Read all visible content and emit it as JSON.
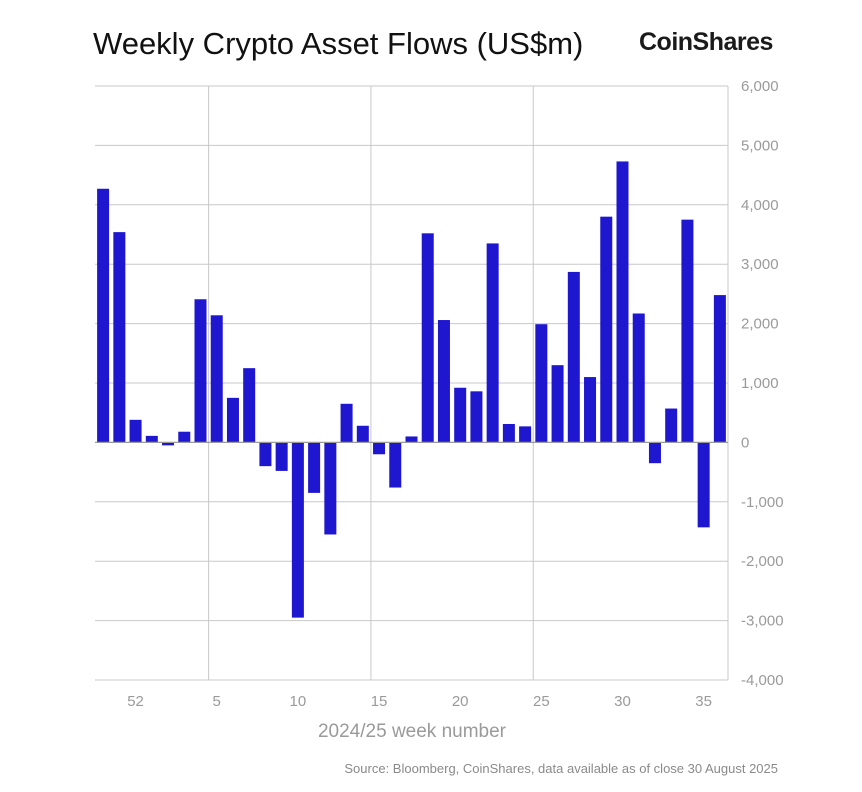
{
  "header": {
    "title": "Weekly Crypto Asset Flows (US$m)",
    "logo_text": "CoinShares"
  },
  "footer": {
    "source": "Source: Bloomberg, CoinShares, data available as of close 30 August 2025"
  },
  "colors": {
    "bar": "#1f17cf",
    "grid": "#c8c8c8",
    "tick_text": "#9a9a9a"
  },
  "chart_data": {
    "type": "bar",
    "title": "Weekly Crypto Asset Flows (US$m)",
    "xlabel": "2024/25 week number",
    "ylabel": "",
    "ylim": [
      -4000,
      6000
    ],
    "yticks": [
      -4000,
      -3000,
      -2000,
      -1000,
      0,
      1000,
      2000,
      3000,
      4000,
      5000,
      6000
    ],
    "ytick_labels": [
      "-4,000",
      "-3,000",
      "-2,000",
      "-1,000",
      "0",
      "1,000",
      "2,000",
      "3,000",
      "4,000",
      "5,000",
      "6,000"
    ],
    "xtick_labels": [
      "52",
      "5",
      "10",
      "15",
      "20",
      "25",
      "30",
      "35"
    ],
    "xtick_categories": [
      52,
      5,
      10,
      15,
      20,
      25,
      30,
      35
    ],
    "categories": [
      50,
      51,
      52,
      1,
      2,
      3,
      4,
      5,
      6,
      7,
      8,
      9,
      10,
      11,
      12,
      13,
      14,
      15,
      16,
      17,
      18,
      19,
      20,
      21,
      22,
      23,
      24,
      25,
      26,
      27,
      28,
      29,
      30,
      31,
      32,
      33,
      34,
      35,
      36
    ],
    "values": [
      4270,
      3540,
      380,
      110,
      -50,
      180,
      2410,
      2140,
      750,
      1250,
      -400,
      -480,
      -2950,
      -850,
      -1550,
      650,
      280,
      -200,
      -760,
      100,
      3520,
      2060,
      920,
      860,
      3350,
      310,
      270,
      1990,
      1300,
      2870,
      1100,
      3800,
      4730,
      2170,
      -350,
      570,
      3750,
      -1430,
      2480
    ],
    "grid": "both",
    "legend": "none"
  }
}
